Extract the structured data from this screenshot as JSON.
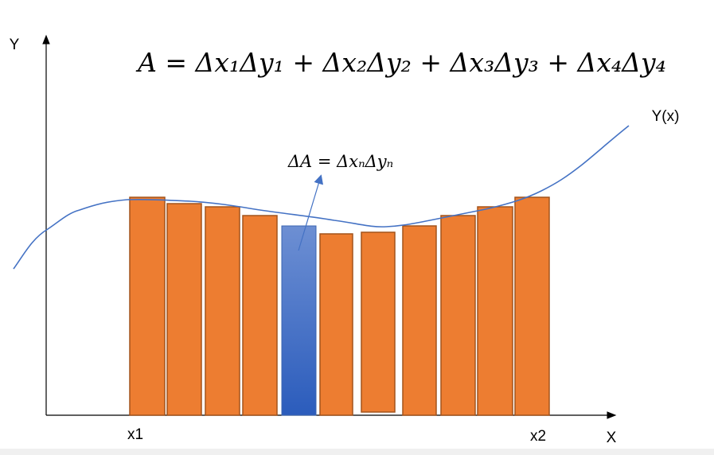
{
  "diagram": {
    "formula": "A = Δx₁Δy₁ + Δx₂Δy₂ + Δx₃Δy₃ + Δx₄Δy₄",
    "element_formula": "ΔA = ΔxₙΔyₙ",
    "curve_label": "Y(x)",
    "y_axis_label": "Y",
    "x_axis_label": "X",
    "x_start_label": "x1",
    "x_end_label": "x2"
  }
}
